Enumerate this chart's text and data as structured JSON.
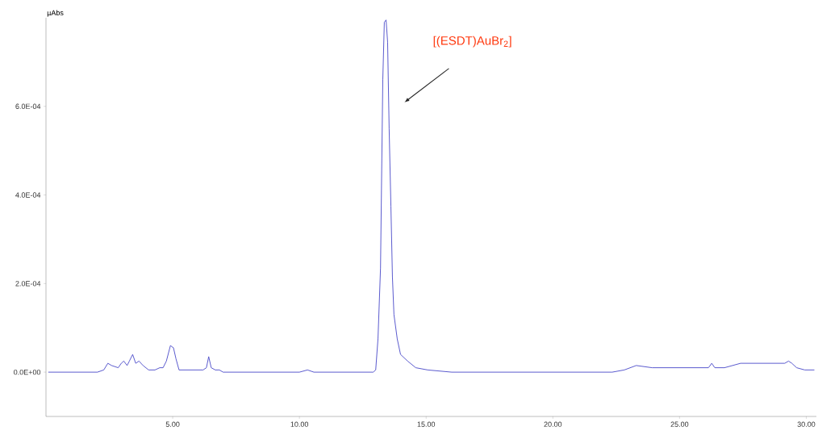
{
  "chart_data": {
    "type": "line",
    "ylabel": "µAbs",
    "color": "#4848c8",
    "line_style": "solid",
    "marker": "none",
    "grid": false,
    "xlim": [
      0,
      30.4
    ],
    "ylim": [
      -0.0001,
      0.0008
    ],
    "xticks": [
      {
        "value": 5,
        "label": "5.00"
      },
      {
        "value": 10,
        "label": "10.00"
      },
      {
        "value": 15,
        "label": "15.00"
      },
      {
        "value": 20,
        "label": "20.00"
      },
      {
        "value": 25,
        "label": "25.00"
      },
      {
        "value": 30,
        "label": "30.00"
      }
    ],
    "yticks": [
      {
        "value": 0,
        "label": "0.0E+00"
      },
      {
        "value": 0.0002,
        "label": "2.0E-04"
      },
      {
        "value": 0.0004,
        "label": "4.0E-04"
      },
      {
        "value": 0.0006,
        "label": "6.0E-04"
      }
    ],
    "annotations": [
      "[(ESDT)AuBr$_{2}$]"
    ],
    "x": [
      0.09,
      1.77,
      2.03,
      2.28,
      2.44,
      2.59,
      2.85,
      2.97,
      3.07,
      3.2,
      3.29,
      3.42,
      3.54,
      3.67,
      3.83,
      4.05,
      4.3,
      4.49,
      4.62,
      4.75,
      4.91,
      5.03,
      5.13,
      5.25,
      6.2,
      6.33,
      6.42,
      6.52,
      6.68,
      6.84,
      6.99,
      7.78,
      9.05,
      9.68,
      10.0,
      10.32,
      10.57,
      10.79,
      12.53,
      12.91,
      13.01,
      13.1,
      13.2,
      13.29,
      13.35,
      13.42,
      13.48,
      13.54,
      13.61,
      13.67,
      13.73,
      13.86,
      13.99,
      14.27,
      14.59,
      15.06,
      16.01,
      17.28,
      20.44,
      22.34,
      22.82,
      23.29,
      23.92,
      24.56,
      25.19,
      26.14,
      26.27,
      26.39,
      26.77,
      27.41,
      27.56,
      28.04,
      28.67,
      29.15,
      29.3,
      29.43,
      29.62,
      29.94,
      30.32
    ],
    "values": [
      0,
      0,
      0,
      5e-06,
      2e-05,
      1.5e-05,
      1e-05,
      2e-05,
      2.5e-05,
      1.5e-05,
      2.5e-05,
      4e-05,
      2e-05,
      2.5e-05,
      1.5e-05,
      5e-06,
      5e-06,
      1e-05,
      1e-05,
      2.5e-05,
      6e-05,
      5.5e-05,
      3e-05,
      5e-06,
      5e-06,
      1e-05,
      3.5e-05,
      1e-05,
      5e-06,
      5e-06,
      0,
      0,
      0,
      0,
      0,
      5e-06,
      0,
      0,
      0,
      0,
      5e-06,
      7.5e-05,
      0.000235,
      0.00066,
      0.00079,
      0.000795,
      0.000745,
      0.00055,
      0.000375,
      0.000215,
      0.00013,
      7.5e-05,
      4e-05,
      2.5e-05,
      1e-05,
      5e-06,
      0,
      0,
      0,
      0,
      5e-06,
      1.5e-05,
      1e-05,
      1e-05,
      1e-05,
      1e-05,
      2e-05,
      1e-05,
      1e-05,
      2e-05,
      2e-05,
      2e-05,
      2e-05,
      2e-05,
      2.5e-05,
      2e-05,
      1e-05,
      5e-06,
      5e-06
    ]
  }
}
